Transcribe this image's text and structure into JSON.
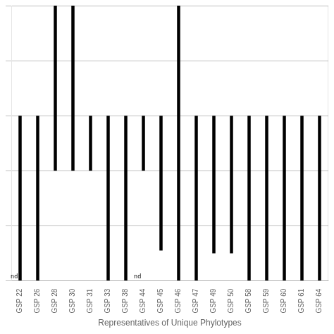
{
  "chart_data": {
    "type": "bar",
    "xlabel": "Representatives of Unique Phylotypes",
    "categories": [
      "GSP 22",
      "GSP 26",
      "GSP 28",
      "GSP 30",
      "GSP 31",
      "GSP 33",
      "GSP 38",
      "GSP 44",
      "GSP 45",
      "GSP 46",
      "GSP 47",
      "GSP 49",
      "GSP 50",
      "GSP 58",
      "GSP 59",
      "GSP 60",
      "GSP 61",
      "GSP 64"
    ],
    "values": [
      [
        3.0,
        0.0
      ],
      [
        3.0,
        0.0
      ],
      [
        5.0,
        2.0
      ],
      [
        5.0,
        2.0
      ],
      [
        3.0,
        2.0
      ],
      [
        3.0,
        0.0
      ],
      [
        3.0,
        0.0
      ],
      [
        3.0,
        2.0
      ],
      [
        3.0,
        0.55
      ],
      [
        5.0,
        0.0
      ],
      [
        3.0,
        0.0
      ],
      [
        3.0,
        0.5
      ],
      [
        3.0,
        0.5
      ],
      [
        3.0,
        0.0
      ],
      [
        3.0,
        0.0
      ],
      [
        3.0,
        0.0
      ],
      [
        3.0,
        0.0
      ],
      [
        3.0,
        0.0
      ]
    ],
    "color": "#000000",
    "ylim": [
      0,
      5
    ],
    "yticks": [
      0,
      1,
      2,
      3,
      4,
      5
    ],
    "grid": true,
    "tick_labels": "x",
    "annotations": [
      {
        "text": "nd",
        "category": "GSP 22"
      },
      {
        "text": "nd",
        "category": "GSP 44"
      }
    ]
  }
}
